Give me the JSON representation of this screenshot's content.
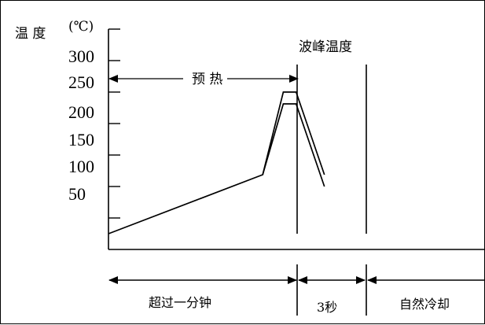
{
  "chart_data": {
    "type": "line",
    "y_axis": {
      "label": "温 度",
      "unit": "(℃)",
      "tick_labels": [
        "300",
        "250",
        "200",
        "150",
        "100",
        "50"
      ]
    },
    "annotations": {
      "preheat": "预 热",
      "peak_temperature": "波峰温度"
    },
    "durations": [
      {
        "label": "超过一分钟"
      },
      {
        "label": "3秒"
      },
      {
        "label": "自然冷却"
      }
    ],
    "series": [
      {
        "points": [
          [
            0,
            0
          ],
          [
            60,
            100
          ],
          [
            68,
            220
          ],
          [
            73,
            220
          ],
          [
            84,
            80
          ]
        ]
      },
      {
        "points": [
          [
            60,
            100
          ],
          [
            68,
            240
          ],
          [
            73,
            240
          ],
          [
            84,
            100
          ]
        ]
      }
    ]
  }
}
